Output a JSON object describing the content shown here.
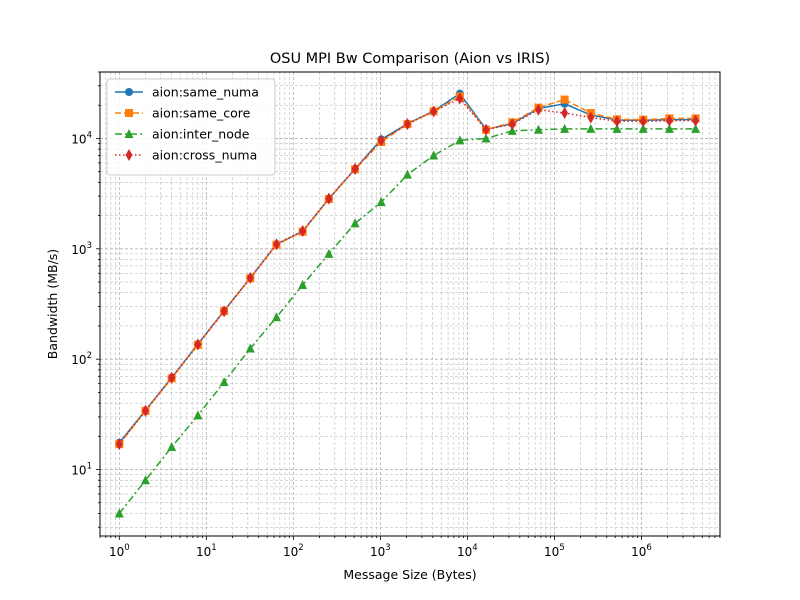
{
  "chart_data": {
    "type": "line",
    "title": "OSU MPI Bw Comparison (Aion vs IRIS)",
    "xlabel": "Message Size (Bytes)",
    "ylabel": "Bandwidth (MB/s)",
    "xscale": "log",
    "yscale": "log",
    "xlim": [
      0.6,
      8000000
    ],
    "ylim": [
      2.5,
      40000
    ],
    "grid": "major and minor",
    "legend_position": "top-left",
    "x_ticks": [
      {
        "value": 1,
        "base": "10",
        "exp": "0"
      },
      {
        "value": 10,
        "base": "10",
        "exp": "1"
      },
      {
        "value": 100,
        "base": "10",
        "exp": "2"
      },
      {
        "value": 1000,
        "base": "10",
        "exp": "3"
      },
      {
        "value": 10000,
        "base": "10",
        "exp": "4"
      },
      {
        "value": 100000,
        "base": "10",
        "exp": "5"
      },
      {
        "value": 1000000,
        "base": "10",
        "exp": "6"
      }
    ],
    "y_ticks": [
      {
        "value": 10,
        "base": "10",
        "exp": "1"
      },
      {
        "value": 100,
        "base": "10",
        "exp": "2"
      },
      {
        "value": 1000,
        "base": "10",
        "exp": "3"
      },
      {
        "value": 10000,
        "base": "10",
        "exp": "4"
      }
    ],
    "x": [
      1,
      2,
      4,
      8,
      16,
      32,
      64,
      128,
      256,
      512,
      1024,
      2048,
      4096,
      8192,
      16384,
      32768,
      65536,
      131072,
      262144,
      524288,
      1048576,
      2097152,
      4194304
    ],
    "series": [
      {
        "name": "aion:same_numa",
        "color": "#1f77b4",
        "marker": "circle",
        "linestyle": "solid",
        "values": [
          17.5,
          34.5,
          68,
          137,
          275,
          545,
          1100,
          1440,
          2850,
          5300,
          9800,
          13600,
          17700,
          25500,
          12100,
          13600,
          18700,
          20600,
          16300,
          14700,
          14600,
          14800,
          14800
        ]
      },
      {
        "name": "aion:same_core",
        "color": "#ff7f0e",
        "marker": "square",
        "linestyle": "dashed",
        "values": [
          17,
          34,
          67,
          135,
          272,
          540,
          1090,
          1430,
          2830,
          5250,
          9300,
          13500,
          17600,
          24000,
          12000,
          14000,
          19000,
          22500,
          17000,
          14900,
          14800,
          15200,
          15200
        ]
      },
      {
        "name": "aion:inter_node",
        "color": "#2ca02c",
        "marker": "triangle",
        "linestyle": "dashdot",
        "values": [
          4,
          8,
          16,
          31,
          62,
          125,
          240,
          470,
          900,
          1700,
          2650,
          4700,
          7000,
          9600,
          10000,
          11700,
          12000,
          12200,
          12200,
          12200,
          12200,
          12200,
          12200
        ]
      },
      {
        "name": "aion:cross_numa",
        "color": "#d62728",
        "marker": "diamond",
        "linestyle": "dotted",
        "values": [
          17,
          34,
          68,
          136,
          272,
          545,
          1100,
          1450,
          2850,
          5300,
          9600,
          13500,
          17600,
          23000,
          12000,
          13500,
          18200,
          17000,
          15500,
          14300,
          14300,
          14500,
          14500
        ]
      }
    ]
  }
}
